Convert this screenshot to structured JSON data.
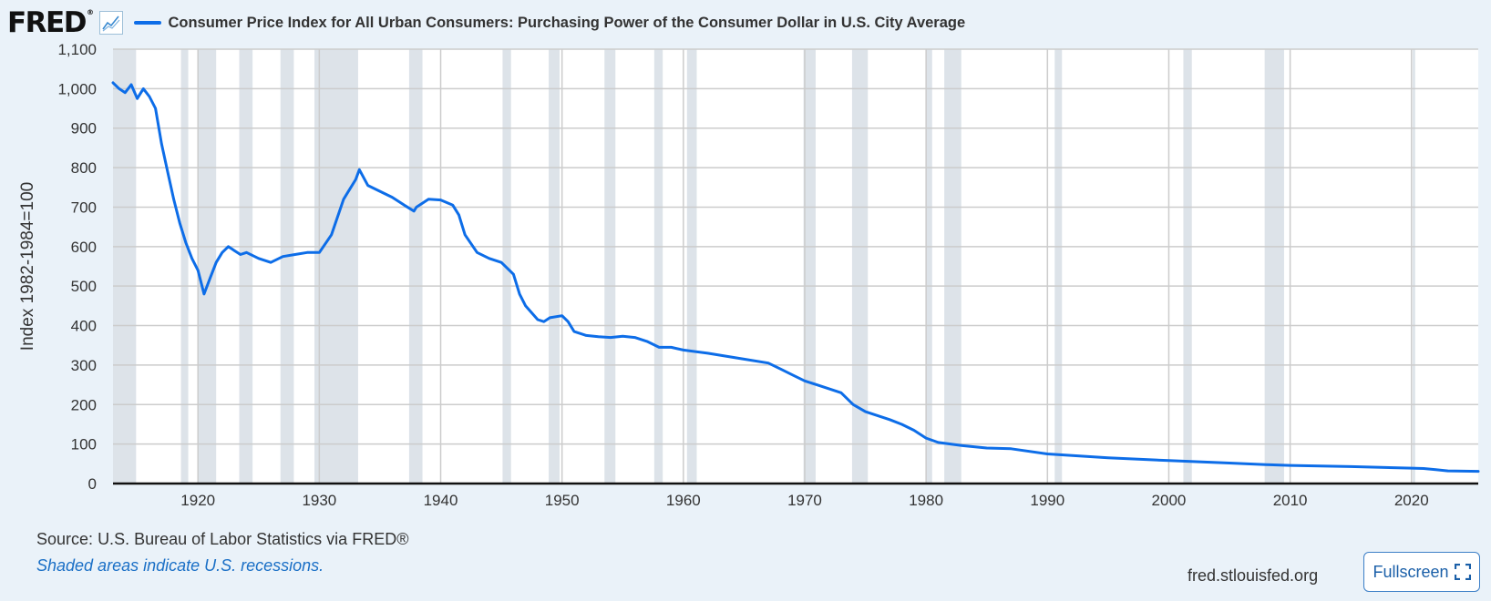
{
  "header": {
    "logo": "FRED",
    "logo_reg": "®",
    "icon": "line-chart-icon",
    "title": "Consumer Price Index for All Urban Consumers: Purchasing Power of the Consumer Dollar in U.S. City Average"
  },
  "footer": {
    "source": "U.S. Bureau of Labor Statistics via FRED®",
    "source_prefix": "Source:",
    "note": "Shaded areas indicate U.S. recessions.",
    "url": "fred.stlouisfed.org",
    "fullscreen_label": "Fullscreen",
    "fullscreen_icon": "expand-icon"
  },
  "colors": {
    "series": "#0d6de8",
    "recession": "#dde3e9",
    "background": "#eaf2f9",
    "plot_background": "#ffffff",
    "grid": "#cccccc"
  },
  "chart_data": {
    "type": "line",
    "title": "Consumer Price Index for All Urban Consumers: Purchasing Power of the Consumer Dollar in U.S. City Average",
    "xlabel": "",
    "ylabel": "Index 1982-1984=100",
    "xlim": [
      1913.0,
      2025.5
    ],
    "ylim": [
      0,
      1100
    ],
    "yticks": [
      0,
      100,
      200,
      300,
      400,
      500,
      600,
      700,
      800,
      900,
      1000,
      1100
    ],
    "ytick_labels": [
      "0",
      "100",
      "200",
      "300",
      "400",
      "500",
      "600",
      "700",
      "800",
      "900",
      "1,000",
      "1,100"
    ],
    "xticks": [
      1920,
      1930,
      1940,
      1950,
      1960,
      1970,
      1980,
      1990,
      2000,
      2010,
      2020
    ],
    "xtick_labels": [
      "1920",
      "1930",
      "1940",
      "1950",
      "1960",
      "1970",
      "1980",
      "1990",
      "2000",
      "2010",
      "2020"
    ],
    "grid": true,
    "recessions": [
      [
        1913.0,
        1914.9
      ],
      [
        1918.6,
        1919.2
      ],
      [
        1920.0,
        1921.5
      ],
      [
        1923.4,
        1924.5
      ],
      [
        1926.8,
        1927.9
      ],
      [
        1929.6,
        1933.2
      ],
      [
        1937.4,
        1938.5
      ],
      [
        1945.1,
        1945.8
      ],
      [
        1948.9,
        1949.8
      ],
      [
        1953.5,
        1954.4
      ],
      [
        1957.6,
        1958.3
      ],
      [
        1960.3,
        1961.1
      ],
      [
        1969.9,
        1970.9
      ],
      [
        1973.9,
        1975.2
      ],
      [
        1980.0,
        1980.5
      ],
      [
        1981.5,
        1982.9
      ],
      [
        1990.6,
        1991.2
      ],
      [
        2001.2,
        2001.9
      ],
      [
        2007.9,
        2009.5
      ],
      [
        2020.1,
        2020.3
      ]
    ],
    "series": [
      {
        "x": [
          1913.0,
          1913.5,
          1914.0,
          1914.5,
          1915.0,
          1915.5,
          1916.0,
          1916.5,
          1917.0,
          1917.5,
          1918.0,
          1918.5,
          1919.0,
          1919.5,
          1920.0,
          1920.5,
          1921.0,
          1921.5,
          1922.0,
          1922.5,
          1923.0,
          1923.5,
          1924.0,
          1925.0,
          1926.0,
          1927.0,
          1928.0,
          1929.0,
          1930.0,
          1931.0,
          1932.0,
          1933.0,
          1933.3,
          1934.0,
          1935.0,
          1936.0,
          1937.0,
          1937.8,
          1938.0,
          1939.0,
          1940.0,
          1941.0,
          1941.5,
          1942.0,
          1943.0,
          1944.0,
          1945.0,
          1946.0,
          1946.5,
          1947.0,
          1948.0,
          1948.5,
          1949.0,
          1950.0,
          1950.5,
          1951.0,
          1952.0,
          1953.0,
          1954.0,
          1955.0,
          1956.0,
          1957.0,
          1958.0,
          1959.0,
          1960.0,
          1962.0,
          1965.0,
          1967.0,
          1968.0,
          1969.0,
          1970.0,
          1971.0,
          1972.0,
          1973.0,
          1974.0,
          1975.0,
          1976.0,
          1977.0,
          1978.0,
          1979.0,
          1980.0,
          1981.0,
          1982.0,
          1983.0,
          1985.0,
          1987.0,
          1990.0,
          1995.0,
          2000.0,
          2005.0,
          2008.0,
          2010.0,
          2015.0,
          2020.0,
          2021.0,
          2022.0,
          2023.0,
          2025.5
        ],
        "y": [
          1015,
          1000,
          990,
          1010,
          975,
          1000,
          980,
          950,
          860,
          790,
          720,
          660,
          610,
          570,
          540,
          480,
          520,
          560,
          585,
          600,
          590,
          580,
          585,
          570,
          560,
          575,
          580,
          585,
          585,
          630,
          720,
          770,
          795,
          755,
          740,
          725,
          705,
          690,
          700,
          720,
          718,
          705,
          680,
          630,
          585,
          570,
          560,
          530,
          480,
          450,
          415,
          410,
          420,
          425,
          410,
          385,
          375,
          372,
          370,
          373,
          370,
          360,
          345,
          345,
          338,
          330,
          315,
          305,
          290,
          275,
          260,
          250,
          240,
          230,
          200,
          182,
          172,
          162,
          150,
          135,
          115,
          104,
          100,
          96,
          90,
          88,
          75,
          65,
          58,
          52,
          48,
          46,
          43,
          39,
          38,
          35,
          32,
          31
        ]
      }
    ]
  }
}
